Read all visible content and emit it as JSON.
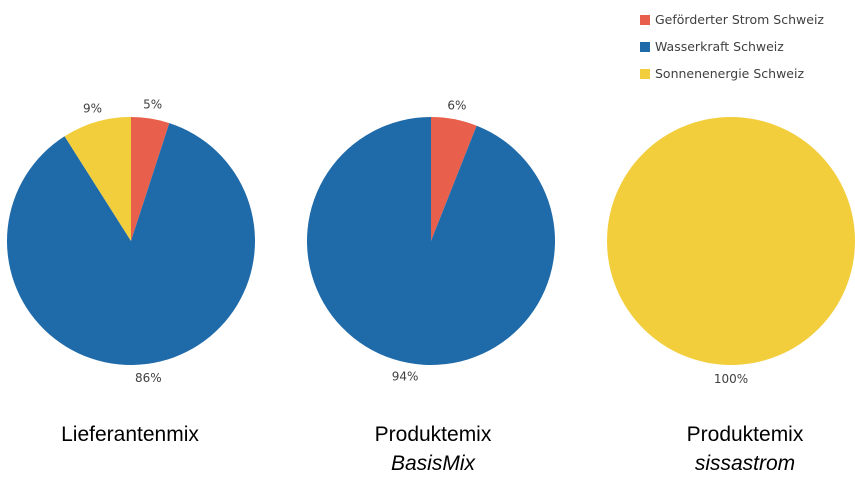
{
  "chart_data": {
    "type": "pie",
    "legend": {
      "position": "top-right",
      "entries": [
        {
          "label": "Geförderter Strom Schweiz",
          "color": "#E8604C"
        },
        {
          "label": "Wasserkraft Schweiz",
          "color": "#1F6AA9"
        },
        {
          "label": "Sonnenenergie Schweiz",
          "color": "#F2CE3D"
        }
      ]
    },
    "charts": [
      {
        "caption": "Lieferantenmix",
        "caption_sub": "",
        "slices": [
          {
            "category": "Geförderter Strom Schweiz",
            "value": 5,
            "label": "5%"
          },
          {
            "category": "Wasserkraft Schweiz",
            "value": 86,
            "label": "86%"
          },
          {
            "category": "Sonnenenergie Schweiz",
            "value": 9,
            "label": "9%"
          }
        ]
      },
      {
        "caption": "Produktemix",
        "caption_sub": "BasisMix",
        "slices": [
          {
            "category": "Geförderter Strom Schweiz",
            "value": 6,
            "label": "6%"
          },
          {
            "category": "Wasserkraft Schweiz",
            "value": 94,
            "label": "94%"
          },
          {
            "category": "Sonnenenergie Schweiz",
            "value": 0,
            "label": ""
          }
        ]
      },
      {
        "caption": "Produktemix",
        "caption_sub": "sissastrom",
        "slices": [
          {
            "category": "Geförderter Strom Schweiz",
            "value": 0,
            "label": ""
          },
          {
            "category": "Wasserkraft Schweiz",
            "value": 0,
            "label": ""
          },
          {
            "category": "Sonnenenergie Schweiz",
            "value": 100,
            "label": "100%"
          }
        ]
      }
    ]
  }
}
